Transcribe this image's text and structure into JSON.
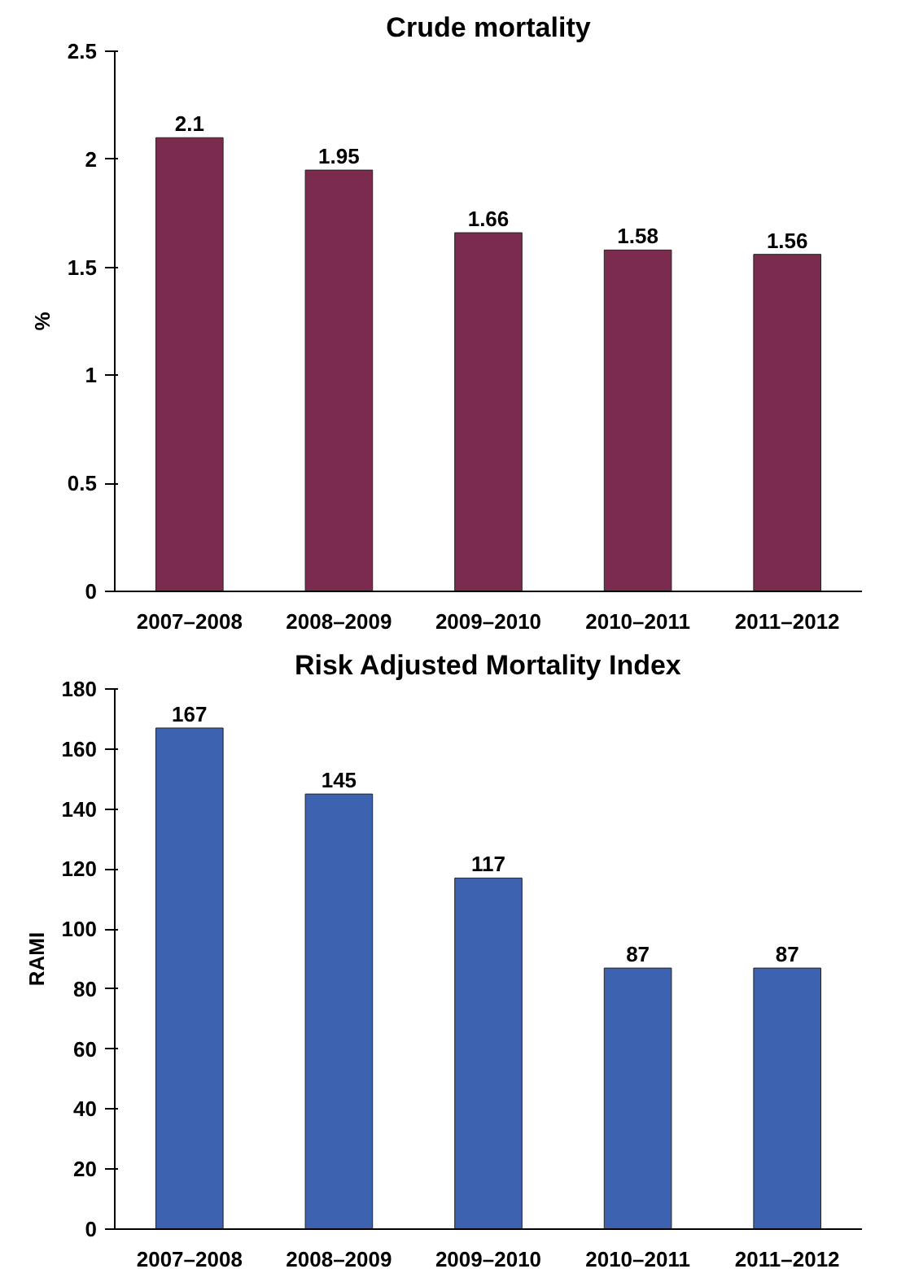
{
  "chart_data": [
    {
      "type": "bar",
      "title": "Crude mortality",
      "ylabel": "%",
      "categories": [
        "2007–2008",
        "2008–2009",
        "2009–2010",
        "2010–2011",
        "2011–2012"
      ],
      "values": [
        2.1,
        1.95,
        1.66,
        1.58,
        1.56
      ],
      "color": "#7b2c4e",
      "ylim": [
        0,
        2.5
      ],
      "yticks": [
        0,
        0.5,
        1,
        1.5,
        2,
        2.5
      ],
      "data_labels": true,
      "grid": false
    },
    {
      "type": "bar",
      "title": "Risk Adjusted Mortality Index",
      "ylabel": "RAMI",
      "categories": [
        "2007–2008",
        "2008–2009",
        "2009–2010",
        "2010–2011",
        "2011–2012"
      ],
      "values": [
        167,
        145,
        117,
        87,
        87
      ],
      "color": "#3d62b0",
      "ylim": [
        0,
        180
      ],
      "yticks": [
        0,
        20,
        40,
        60,
        80,
        100,
        120,
        140,
        160,
        180
      ],
      "data_labels": true,
      "grid": false
    }
  ]
}
